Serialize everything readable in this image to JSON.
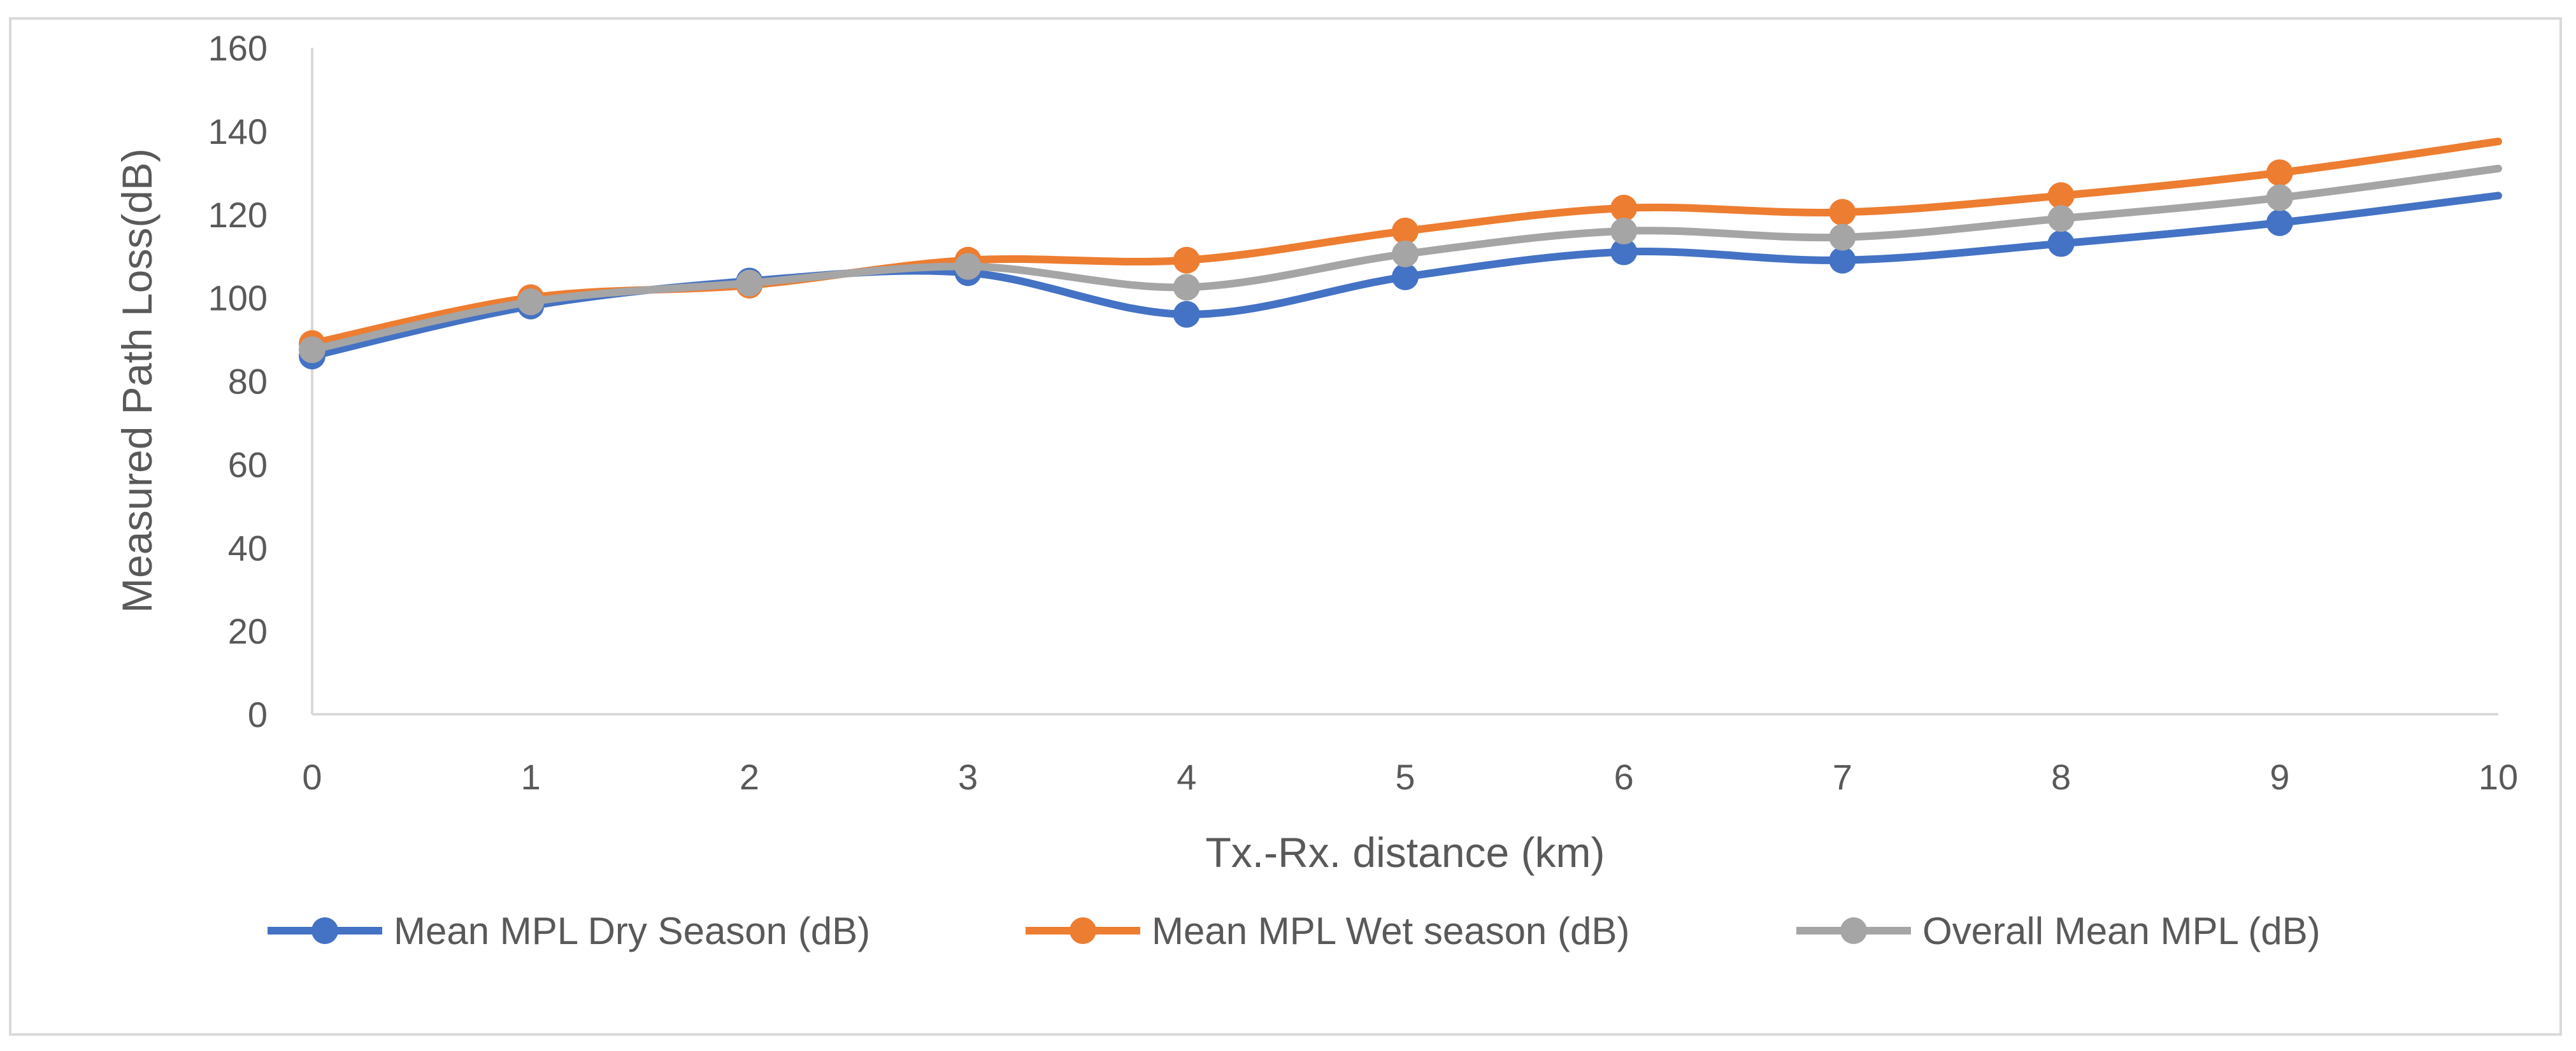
{
  "chart_data": {
    "type": "line",
    "title": "",
    "xlabel": "Tx.-Rx. distance (km)",
    "ylabel": "Measured Path Loss(dB)",
    "x": [
      0,
      1,
      2,
      3,
      4,
      5,
      6,
      7,
      8,
      9,
      10
    ],
    "xlim": [
      0,
      10
    ],
    "ylim": [
      0,
      160
    ],
    "yticks": [
      0,
      20,
      40,
      60,
      80,
      100,
      120,
      140,
      160
    ],
    "xticks": [
      0,
      1,
      2,
      3,
      4,
      5,
      6,
      7,
      8,
      9,
      10
    ],
    "grid": false,
    "legend_position": "bottom",
    "smooth": true,
    "series": [
      {
        "name": "Mean MPL Dry Season (dB)",
        "color": "#4472C4",
        "x": [
          0,
          1,
          2,
          3,
          4,
          5,
          6,
          7,
          8,
          9
        ],
        "values": [
          86,
          98,
          104,
          106,
          96,
          105,
          111,
          109,
          113,
          118
        ],
        "end_value": 124.5
      },
      {
        "name": "Mean MPL Wet season (dB)",
        "color": "#ED7D31",
        "x": [
          0,
          1,
          2,
          3,
          4,
          5,
          6,
          7,
          8,
          9
        ],
        "values": [
          89,
          100,
          103,
          109,
          109,
          116,
          121.5,
          120.5,
          124.5,
          130
        ],
        "end_value": 137.5
      },
      {
        "name": "Overall Mean MPL (dB)",
        "color": "#A5A5A5",
        "x": [
          0,
          1,
          2,
          3,
          4,
          5,
          6,
          7,
          8,
          9
        ],
        "values": [
          87.5,
          99,
          103.5,
          107.5,
          102.5,
          110.5,
          116,
          114.5,
          119,
          124
        ],
        "end_value": 131
      }
    ]
  }
}
